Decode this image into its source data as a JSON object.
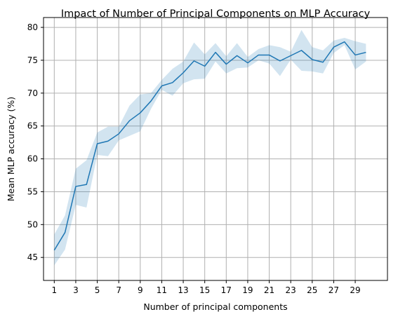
{
  "chart_data": {
    "type": "line",
    "title": "Impact of Number of Principal Components on MLP Accuracy",
    "xlabel": "Number of principal components",
    "ylabel": "Mean MLP accuracy (%)",
    "xlim": [
      0,
      32
    ],
    "ylim": [
      41.5,
      81.5
    ],
    "xticks": [
      1,
      3,
      5,
      7,
      9,
      11,
      13,
      15,
      17,
      19,
      21,
      23,
      25,
      27,
      29
    ],
    "yticks": [
      45,
      50,
      55,
      60,
      65,
      70,
      75,
      80
    ],
    "grid": true,
    "series": [
      {
        "x": [
          1,
          2,
          3,
          4,
          5,
          6,
          7,
          8,
          9,
          10,
          11,
          12,
          13,
          14,
          15,
          16,
          17,
          18,
          19,
          20,
          21,
          22,
          23,
          24,
          25,
          26,
          27,
          28,
          29,
          30
        ],
        "values": [
          46.1,
          48.8,
          55.8,
          56.1,
          62.3,
          62.7,
          63.8,
          65.8,
          67.0,
          68.8,
          71.1,
          71.6,
          73.1,
          74.9,
          74.1,
          76.2,
          74.4,
          75.7,
          74.6,
          75.8,
          75.8,
          74.9,
          75.7,
          76.5,
          75.1,
          74.7,
          77.0,
          77.8,
          75.8,
          76.2
        ],
        "lower": [
          43.8,
          46.2,
          53.0,
          52.6,
          60.6,
          60.4,
          62.8,
          63.5,
          64.2,
          67.6,
          70.5,
          69.6,
          71.5,
          72.1,
          72.2,
          74.8,
          73.0,
          73.8,
          73.9,
          75.0,
          74.5,
          72.6,
          75.1,
          73.4,
          73.3,
          73.0,
          76.1,
          77.3,
          73.6,
          74.8
        ],
        "upper": [
          48.5,
          51.4,
          58.5,
          59.8,
          64.0,
          64.9,
          64.9,
          68.1,
          69.8,
          70.0,
          72.0,
          73.7,
          74.8,
          77.7,
          75.9,
          77.6,
          75.6,
          77.6,
          75.5,
          76.7,
          77.3,
          77.0,
          76.3,
          79.6,
          77.0,
          76.5,
          78.0,
          78.4,
          77.9,
          77.5
        ]
      }
    ],
    "line_color": "#1f77b4",
    "band_color": "#1f77b4"
  }
}
